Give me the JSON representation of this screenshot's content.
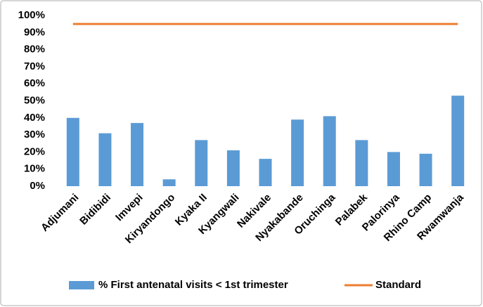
{
  "chart_data": {
    "type": "bar",
    "categories": [
      "Adjumani",
      "Bidibidi",
      "Imvepi",
      "Kiryandongo",
      "Kyaka II",
      "Kyangwali",
      "Nakivale",
      "Nyakabande",
      "Oruchinga",
      "Palabek",
      "Palorinya",
      "Rhino Camp",
      "Rwamwanja"
    ],
    "series": [
      {
        "name": "% First antenatal visits < 1st trimester",
        "color": "#5b9bd5",
        "type": "bar",
        "values": [
          40,
          31,
          37,
          4,
          27,
          21,
          16,
          39,
          41,
          27,
          20,
          19,
          53
        ]
      },
      {
        "name": "Standard",
        "color": "#ed7d31",
        "type": "line",
        "values": [
          95,
          95,
          95,
          95,
          95,
          95,
          95,
          95,
          95,
          95,
          95,
          95,
          95
        ]
      }
    ],
    "ylim": [
      0,
      100
    ],
    "yticks": [
      {
        "value": 0,
        "label": "0%"
      },
      {
        "value": 10,
        "label": "10%"
      },
      {
        "value": 20,
        "label": "20%"
      },
      {
        "value": 30,
        "label": "30%"
      },
      {
        "value": 40,
        "label": "40%"
      },
      {
        "value": 50,
        "label": "50%"
      },
      {
        "value": 60,
        "label": "60%"
      },
      {
        "value": 70,
        "label": "70%"
      },
      {
        "value": 80,
        "label": "80%"
      },
      {
        "value": 90,
        "label": "90%"
      },
      {
        "value": 100,
        "label": "100%"
      }
    ],
    "grid": false,
    "legend": "bottom"
  }
}
